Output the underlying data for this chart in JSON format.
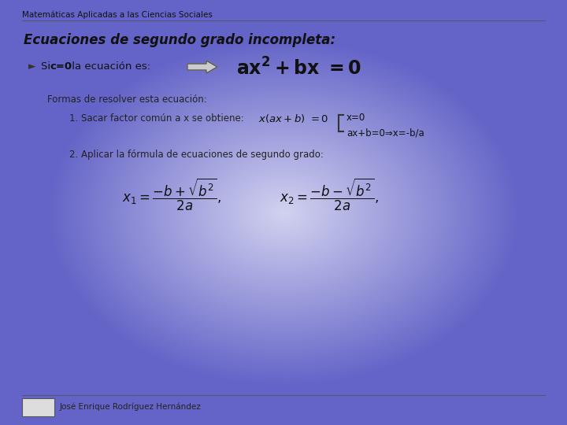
{
  "title_header": "Matemáticas Aplicadas a las Ciencias Sociales",
  "main_title": "Ecuaciones de segundo grado incompleta:",
  "footer_text": "José Enrique Rodríguez Hernández",
  "brace_sol1": "x=0",
  "brace_sol2": "ax+b=0⇒x=-b/a",
  "forms_title": "Formas de resolver esta ecuación:",
  "step1_text": "1. Sacar factor común a x se obtiene:",
  "step2_text": "2. Aplicar la fórmula de ecuaciones de segundo grado:"
}
